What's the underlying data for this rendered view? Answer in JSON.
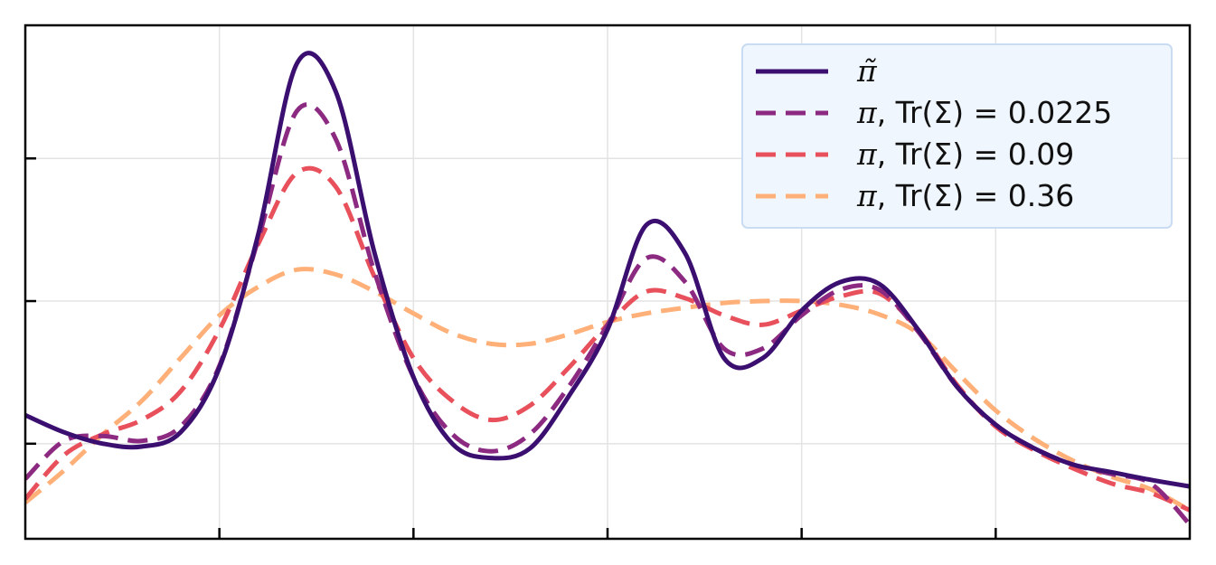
{
  "chart_data": {
    "type": "line",
    "title": "",
    "xlabel": "",
    "ylabel": "",
    "xlim": [
      -3,
      3
    ],
    "ylim": [
      0.0,
      0.54
    ],
    "xticks": [
      -2,
      -1,
      0,
      1,
      2
    ],
    "yticks": [
      0.1,
      0.25,
      0.4
    ],
    "grid": true,
    "legend_position": "top-right",
    "x": [
      -3.0,
      -2.8,
      -2.6,
      -2.4,
      -2.2,
      -2.0,
      -1.8,
      -1.6,
      -1.4,
      -1.2,
      -1.0,
      -0.8,
      -0.6,
      -0.4,
      -0.2,
      0.0,
      0.2,
      0.4,
      0.6,
      0.8,
      1.0,
      1.2,
      1.4,
      1.6,
      1.8,
      2.0,
      2.2,
      2.4,
      2.6,
      2.8,
      3.0
    ],
    "series": [
      {
        "name_prefix": "π̃",
        "name_suffix": "",
        "color": "#3b0f70",
        "style": "solid",
        "values": [
          0.13,
          0.112,
          0.1,
          0.097,
          0.112,
          0.18,
          0.32,
          0.5,
          0.47,
          0.3,
          0.17,
          0.1,
          0.085,
          0.095,
          0.15,
          0.22,
          0.33,
          0.3,
          0.19,
          0.19,
          0.24,
          0.27,
          0.268,
          0.22,
          0.16,
          0.12,
          0.095,
          0.078,
          0.07,
          0.062,
          0.055
        ]
      },
      {
        "name_prefix": "π",
        "name_suffix": ", Tr(Σ) = 0.0225",
        "color": "#8c2981",
        "style": "dashed",
        "values": [
          0.063,
          0.103,
          0.108,
          0.103,
          0.118,
          0.182,
          0.315,
          0.45,
          0.42,
          0.28,
          0.17,
          0.11,
          0.092,
          0.11,
          0.16,
          0.225,
          0.295,
          0.27,
          0.2,
          0.2,
          0.235,
          0.262,
          0.262,
          0.218,
          0.16,
          0.12,
          0.095,
          0.078,
          0.068,
          0.058,
          0.015
        ]
      },
      {
        "name_prefix": "π",
        "name_suffix": ", Tr(Σ) = 0.09",
        "color": "#e8505b",
        "style": "dashed",
        "values": [
          0.042,
          0.088,
          0.11,
          0.125,
          0.155,
          0.22,
          0.31,
          0.385,
          0.37,
          0.275,
          0.19,
          0.145,
          0.125,
          0.14,
          0.18,
          0.225,
          0.26,
          0.253,
          0.235,
          0.225,
          0.24,
          0.255,
          0.258,
          0.22,
          0.162,
          0.118,
          0.093,
          0.074,
          0.058,
          0.048,
          0.03
        ]
      },
      {
        "name_prefix": "π",
        "name_suffix": ", Tr(Σ) = 0.36",
        "color": "#feb078",
        "style": "dashed",
        "values": [
          0.038,
          0.072,
          0.11,
          0.145,
          0.19,
          0.235,
          0.265,
          0.283,
          0.278,
          0.26,
          0.237,
          0.216,
          0.205,
          0.205,
          0.215,
          0.228,
          0.237,
          0.243,
          0.248,
          0.25,
          0.25,
          0.246,
          0.236,
          0.216,
          0.175,
          0.135,
          0.105,
          0.082,
          0.065,
          0.052,
          0.03
        ]
      }
    ]
  }
}
